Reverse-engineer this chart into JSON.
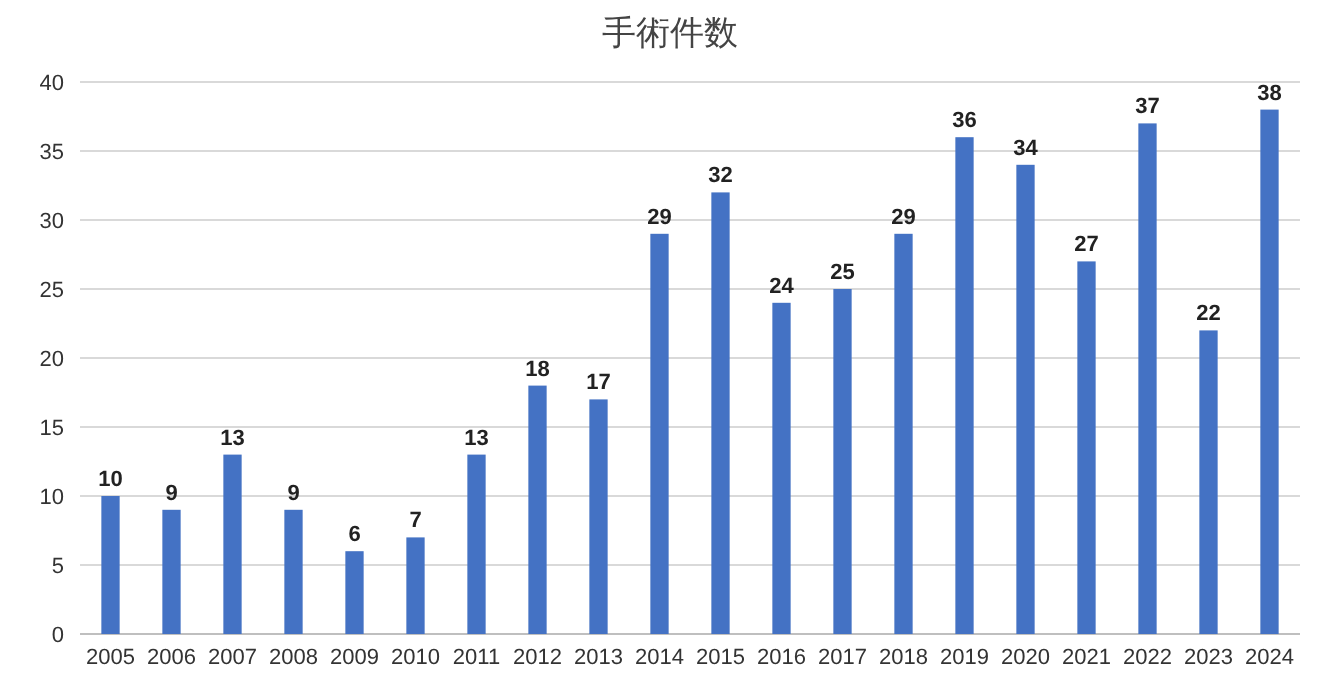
{
  "chart_data": {
    "type": "bar",
    "title": "手術件数",
    "categories": [
      "2005",
      "2006",
      "2007",
      "2008",
      "2009",
      "2010",
      "2011",
      "2012",
      "2013",
      "2014",
      "2015",
      "2016",
      "2017",
      "2018",
      "2019",
      "2020",
      "2021",
      "2022",
      "2023",
      "2024"
    ],
    "values": [
      10,
      9,
      13,
      9,
      6,
      7,
      13,
      18,
      17,
      29,
      32,
      24,
      25,
      29,
      36,
      34,
      27,
      37,
      22,
      38
    ],
    "color": "#4472c4",
    "ylim": [
      0,
      40
    ],
    "yticks": [
      0,
      5,
      10,
      15,
      20,
      25,
      30,
      35,
      40
    ],
    "grid": "y",
    "data_labels": true
  }
}
